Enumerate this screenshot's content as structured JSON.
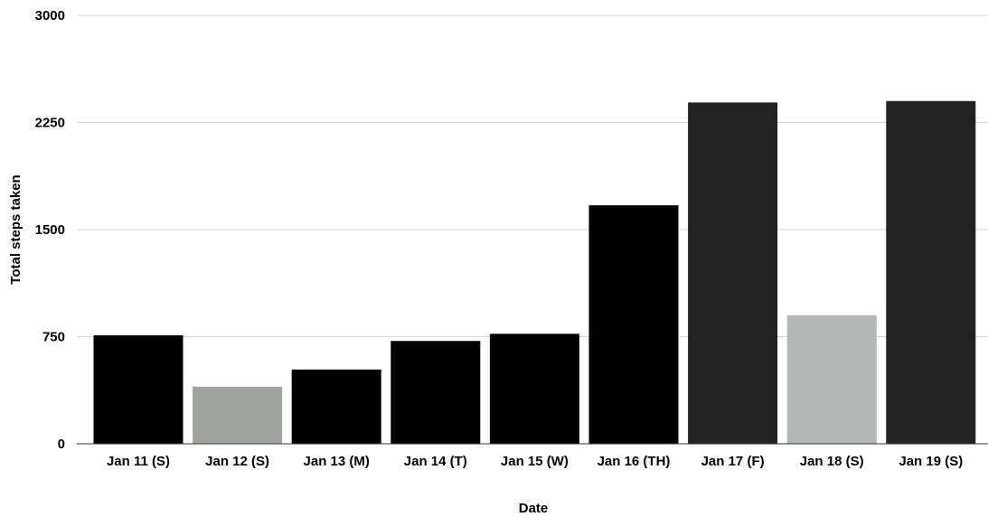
{
  "chart_data": {
    "type": "bar",
    "xlabel": "Date",
    "ylabel": "Total steps taken",
    "ylim": [
      0,
      3000
    ],
    "yticks": [
      0,
      750,
      1500,
      2250,
      3000
    ],
    "grid": true,
    "categories": [
      "Jan 11 (S)",
      "Jan 12 (S)",
      "Jan 13 (M)",
      "Jan 14 (T)",
      "Jan 15 (W)",
      "Jan 16 (TH)",
      "Jan 17 (F)",
      "Jan 18 (S)",
      "Jan 19 (S)"
    ],
    "values": [
      760,
      400,
      520,
      720,
      770,
      1670,
      2390,
      900,
      2400
    ],
    "colors": [
      "#000000",
      "#a0a49f",
      "#000000",
      "#000000",
      "#000000",
      "#000000",
      "#222222",
      "#b3b7b6",
      "#222222"
    ]
  }
}
